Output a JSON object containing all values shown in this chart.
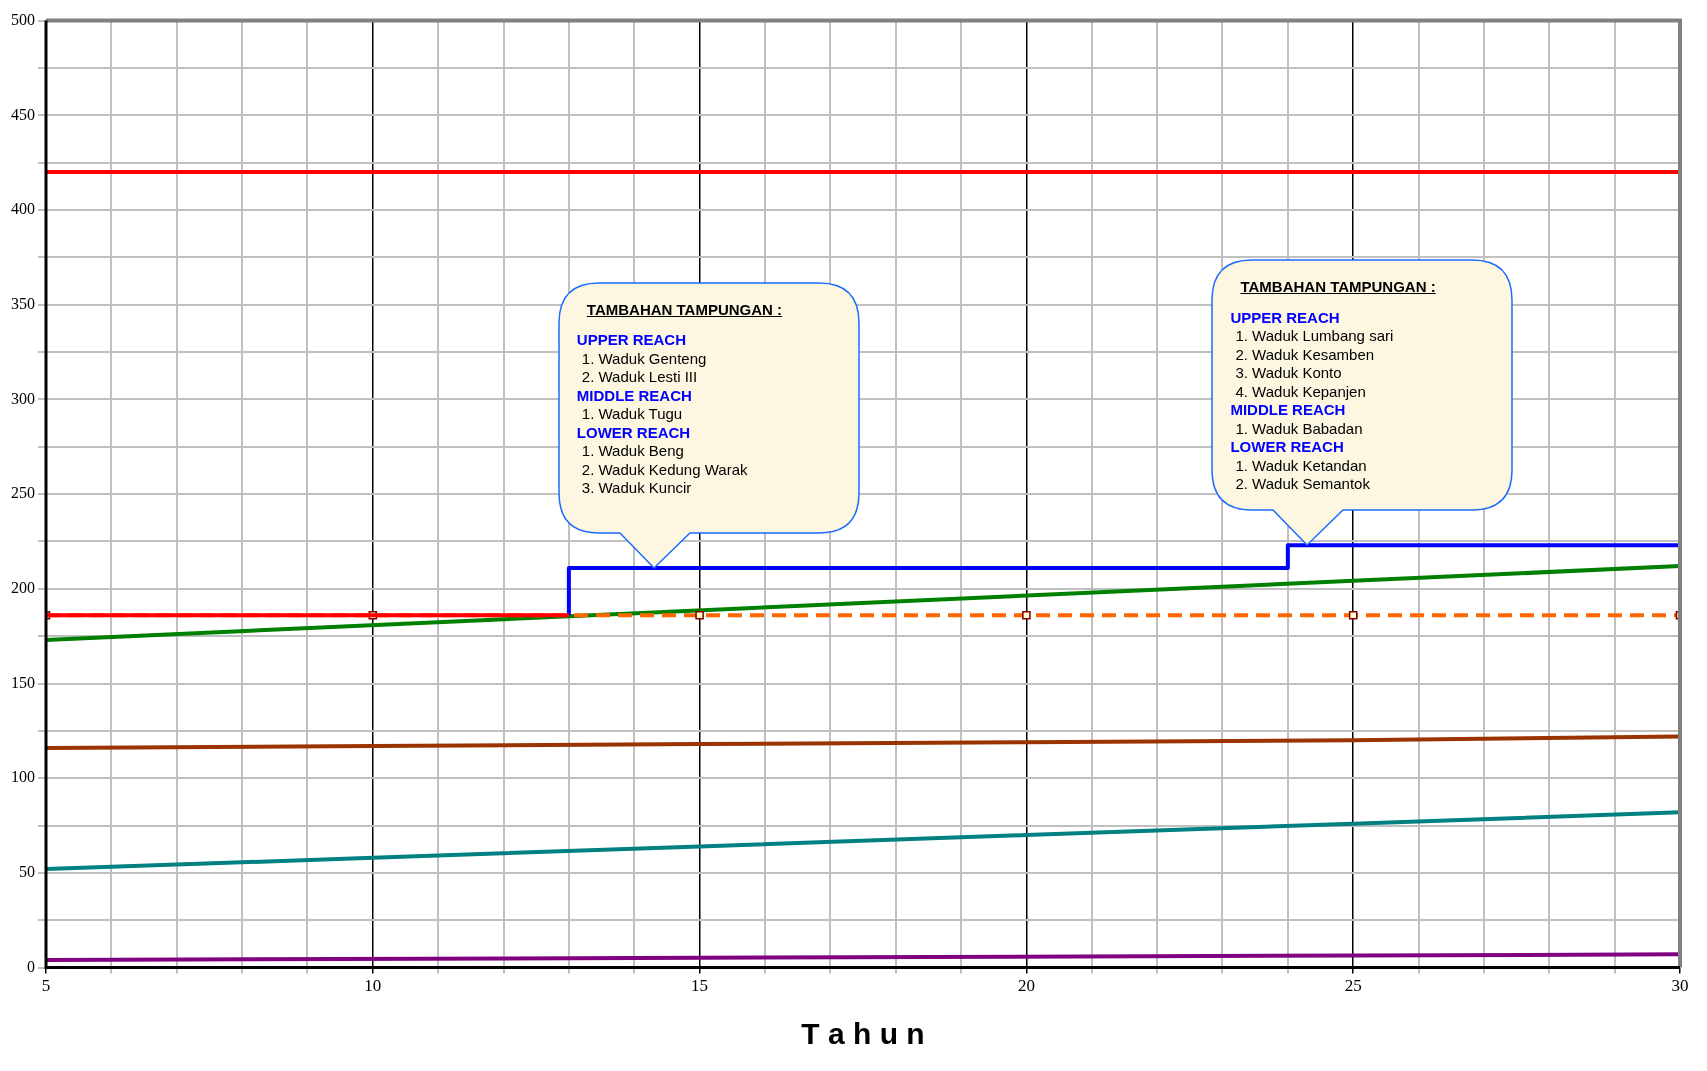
{
  "chart_data": {
    "type": "line",
    "xlabel": "T a h u n",
    "xlim": [
      5,
      30
    ],
    "xticks": [
      5,
      {
        "value": 6,
        "label": null
      },
      {
        "value": 7,
        "label": null
      },
      {
        "value": 8,
        "label": null
      },
      {
        "value": 9,
        "label": null
      },
      10,
      {
        "value": 11,
        "label": null
      },
      {
        "value": 12,
        "label": null
      },
      {
        "value": 13,
        "label": null
      },
      {
        "value": 14,
        "label": null
      },
      15,
      {
        "value": 16,
        "label": null
      },
      {
        "value": 17,
        "label": null
      },
      {
        "value": 18,
        "label": null
      },
      {
        "value": 19,
        "label": null
      },
      20,
      {
        "value": 21,
        "label": null
      },
      {
        "value": 22,
        "label": null
      },
      {
        "value": 23,
        "label": null
      },
      {
        "value": 24,
        "label": null
      },
      25,
      {
        "value": 26,
        "label": null
      },
      {
        "value": 27,
        "label": null
      },
      {
        "value": 28,
        "label": null
      },
      {
        "value": 29,
        "label": null
      },
      30
    ],
    "ylim": [
      0,
      500
    ],
    "yticks": [
      0,
      {
        "value": 25,
        "label": null
      },
      50,
      {
        "value": 75,
        "label": null
      },
      100,
      {
        "value": 125,
        "label": null
      },
      150,
      {
        "value": 175,
        "label": null
      },
      200,
      {
        "value": 225,
        "label": null
      },
      250,
      {
        "value": 275,
        "label": null
      },
      300,
      {
        "value": 325,
        "label": null
      },
      350,
      {
        "value": 375,
        "label": null
      },
      400,
      {
        "value": 425,
        "label": null
      },
      450,
      {
        "value": 475,
        "label": null
      },
      500
    ],
    "grid": true,
    "legend": false,
    "series": [
      {
        "color": "#ff0000",
        "x": [
          5,
          30
        ],
        "values": [
          420,
          420
        ],
        "marker": "none",
        "line_style": "solid"
      },
      {
        "color": "#ff0000",
        "x": [
          5,
          13
        ],
        "values": [
          186,
          186
        ],
        "line_style": "solid"
      },
      {
        "color": "#ff6600",
        "x": [
          5,
          10,
          15,
          20,
          25,
          30
        ],
        "values": [
          186,
          186,
          186,
          186,
          186,
          186
        ],
        "marker": "square",
        "line_style": "dashed"
      },
      {
        "color": "#0000ff",
        "x": [
          13,
          13,
          24,
          24,
          30
        ],
        "values": [
          186,
          211,
          211,
          223,
          223
        ],
        "marker": "none",
        "line_style": "solid"
      },
      {
        "color": "#008000",
        "x": [
          5,
          30
        ],
        "values": [
          173,
          212
        ],
        "marker": "none",
        "line_style": "solid"
      },
      {
        "color": "#993300",
        "x": [
          5,
          10,
          15,
          20,
          25,
          30
        ],
        "values": [
          116,
          117,
          118,
          119,
          120,
          122
        ],
        "marker": "none",
        "line_style": "solid"
      },
      {
        "color": "#008080",
        "x": [
          5,
          10,
          15,
          20,
          25,
          30
        ],
        "values": [
          52,
          58,
          64,
          70,
          76,
          82
        ],
        "marker": "none",
        "line_style": "solid"
      },
      {
        "color": "#800080",
        "x": [
          5,
          30
        ],
        "values": [
          4,
          7
        ],
        "marker": "none",
        "line_style": "solid"
      }
    ],
    "annotations": [
      "TAMBAHAN TAMPUNGAN :",
      "UPPER REACH",
      "1. Waduk Genteng",
      "2. Waduk Lesti III",
      "MIDDLE REACH",
      "1. Waduk Tugu",
      "LOWER REACH",
      "1. Waduk Beng",
      "2. Waduk Kedung Warak",
      "3. Waduk Kuncir",
      "TAMBAHAN TAMPUNGAN :",
      "UPPER REACH",
      "1. Waduk Lumbang sari",
      "2. Waduk Kesamben",
      "3. Waduk Konto",
      "4. Waduk Kepanjen",
      "MIDDLE REACH",
      "1. Waduk Babadan",
      "LOWER REACH",
      "1. Waduk Ketandan",
      "2. Waduk Semantok"
    ]
  }
}
